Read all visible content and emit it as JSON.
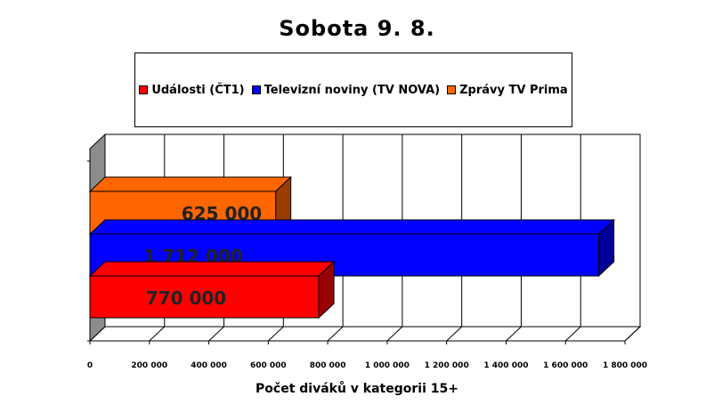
{
  "chart_data": {
    "type": "bar",
    "orientation": "horizontal",
    "style": "3d",
    "title": "Sobota 9. 8.",
    "xlabel": "Počet diváků v kategorii 15+",
    "xlim": [
      0,
      1800000
    ],
    "ticks": [
      {
        "value": 0,
        "label": "0"
      },
      {
        "value": 200000,
        "label": "200 000"
      },
      {
        "value": 400000,
        "label": "400 000"
      },
      {
        "value": 600000,
        "label": "600 000"
      },
      {
        "value": 800000,
        "label": "800 000"
      },
      {
        "value": 1000000,
        "label": "1 000 000"
      },
      {
        "value": 1200000,
        "label": "1 200 000"
      },
      {
        "value": 1400000,
        "label": "1 400 000"
      },
      {
        "value": 1600000,
        "label": "1 600 000"
      },
      {
        "value": 1800000,
        "label": "1 800 000"
      }
    ],
    "grid": true,
    "legend_position": "top",
    "series": [
      {
        "name": "Události (ČT1)",
        "value": 770000,
        "label": "770 000",
        "color": "#ff0000",
        "side_color": "#990000"
      },
      {
        "name": "Televizní noviny (TV NOVA)",
        "value": 1712000,
        "label": "1 712 000",
        "color": "#0000ff",
        "side_color": "#000099"
      },
      {
        "name": "Zprávy TV Prima",
        "value": 625000,
        "label": "625 000",
        "color": "#ff6600",
        "side_color": "#993d00"
      }
    ]
  }
}
